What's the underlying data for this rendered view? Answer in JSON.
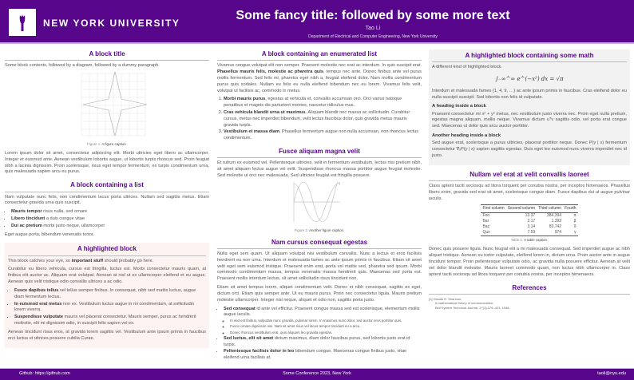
{
  "header": {
    "logo_text": "NEW YORK UNIVERSITY",
    "title": "Some fancy title: followed by some more text",
    "author": "Tao Li",
    "institution": "Department of Electrical and Computer Engineering, New York University"
  },
  "colors": {
    "brand": "#57068c",
    "highlight": "#fdf3f1",
    "highlight2": "#f2f2f2"
  },
  "col1": {
    "b1": {
      "title": "A block title",
      "intro": "Some block contents, followed by a diagram, followed by a dummy paragraph.",
      "fig_label": "Figure 1.",
      "fig_caption": "A figure caption.",
      "para": "Lorem ipsum dolor sit amet, consectetur adipiscing elit. Morbi ultricies eget libero ac ullamcorper. Integer et euismod ante. Aenean vestibulum lobortis augue, ut lobortis turpis rhoncus sed. Proin feugiat nibh a lacinia dignissim. Proin scelerisque, risus eget tempor fermentum, ex turpis condimentum urna, quis malesuada sapien arcu eu purus."
    },
    "b2": {
      "title": "A block containing a list",
      "intro": "Nam vulputate nunc felis, non condimentum lacus porta ultrices. Nullam sed sagittis metus. Etiam consectetur gravida urna quis suscipit.",
      "items": [
        {
          "b": "Mauris tempor",
          "t": " risus nulla, sed ornare"
        },
        {
          "b": "Libero tincidunt",
          "t": " a duis congue vitae"
        },
        {
          "b": "Dui ac pretium",
          "t": " morbi justo neque, ullamcorper"
        }
      ],
      "outro": "Eget augue porta, bibendum venenatis tortor."
    },
    "b3": {
      "title": "A highlighted block",
      "p1a": "This block catches your eye, so ",
      "p1b": "important stuff",
      "p1c": " should probably go here.",
      "p2": "Curabitur eu libero vehicula, cursus est fringilla, luctus est. Morbi consectetur mauris quam, at finibus elit auctor ac. Aliquam erat volutpat. Aenean at nisl ut ex ullamcorper eleifend et eu augue. Aenean quis velit tristique odio convallis ultrices a ac odio.",
      "items": [
        {
          "b": "Fusce dapibus tellus",
          "t": " vel tellus semper finibus. In consequat, nibh sed mattis luctus, augue diam fermentum lectus."
        },
        {
          "b": "In euismod erat metus",
          "t": " non ex. Vestibulum luctus augue in mi condimentum, at sollicitudin lorem viverra."
        },
        {
          "b": "Suspendisse vulputate",
          "t": " mauris vel placerat consectetur. Mauris semper, purus ac hendrerit molestie, elit mi dignissim odio, in suscipit felis sapien vel ex."
        }
      ],
      "p3": "Aenean tincidunt risus eros, at gravida lorem sagittis vel. Vestibulum ante ipsum primis in faucibus orci luctus et ultrices posuere cubilia Curae."
    }
  },
  "col2": {
    "b1": {
      "title": "A block containing an enumerated list",
      "p1a": "Vivamus congue volutpat elit non semper. Praesent molestie nec erat ac interdum. In quis suscipit erat. ",
      "p1b": "Phasellus mauris felis, molestie ac pharetra quis",
      "p1c": ", tempus nec ante. Donec finibus ante vel purus mollis fermentum. Sed felis mi, pharetra eget nibh a, feugiat eleifend dolor. Nam mollis condimentum purus quis sodales. Nullam eu felis eu nulla eleifend bibendum nec eu lorem. Vivamus felis velit, volutpat ut facilisis ac, commodo in metus.",
      "items": [
        {
          "b": "Morbi mauris purus",
          "t": ", egestas at vehicula et, convallis accumsan orci. Orci varius natoque penatibus et magnis dis parturient montes, nascetur ridiculus mus."
        },
        {
          "b": "Cras vehicula blandit urna ut maximus",
          "t": ". Aliquam blandit nec massa ac sollicitudin. Curabitur cursus, metus nec imperdiet bibendum, velit lectus faucibus dolor, quis gravida metus mauris gravida turpis."
        },
        {
          "b": "Vestibulum et massa diam",
          "t": ". Phasellus fermentum augue non nulla accumsan, non rhoncus lectus condimentum."
        }
      ]
    },
    "b2": {
      "title": "Fusce aliquam magna velit",
      "p": "Et rutrum ex euismod vel. Pellentesque ultricies, velit in fermentum vestibulum, lectus nisi pretium nibh, sit amet aliquam lectus augue vel velit. Suspendisse rhoncus massa porttitor augue feugiat molestie. Sed molestie ut orci nec malesuada. Sed ultricies feugiat est fringilla posuere.",
      "fig_label": "Figure 2.",
      "fig_caption": "Another figure caption."
    },
    "b3": {
      "title": "Nam cursus consequat egestas",
      "p1": "Nulla eget sem quam. Ut aliquam volutpat nisi vestibulum convallis. Nunc a lectus et eros facilisis hendrerit eu non urna. Interdum et malesuada fames ac ante ipsum primis in faucibus. Etiam sit amet velit eget sem euismod tristique. Praesent enim erat, porta vel mattis sed, pharetra sed ipsum. Morbi commodo condimentum massa, tempus venenatis massa hendrerit quis. Maecenas sed porta est. Praesent mollis interdum lectus, sit amet sollicitudin risus tincidunt non.",
      "p2": "Etiam sit amet tempus lorem, aliquet condimentum velit. Donec et nibh consequat, sagittis ex eget, dictum orci. Etiam quis semper ante. Ut eu mauris purus. Proin nec consectetur ligula. Mauris pretium molestie ullamcorper. Integer nisi neque, aliquet et odio non, sagittis porta justo.",
      "items": [
        {
          "b": "Sed consequat",
          "t": " id ante vel efficitur. Praesent congue massa sed est scelerisque, elementum mollis augue iaculis.",
          "sub": [
            "In sed est finibus, vulputate nunc gravida, pulvinar lorem. In maximus nunc dolor, sed auctor eros porttitor quis.",
            "Fusce ornare dignissim nisi. Nam sit amet risus vel lacus tempor tincidunt eu a arcu.",
            "Donec rhoncus vestibulum erat, quis aliquam leo gravida egestas."
          ]
        },
        {
          "b": "Sed luctus, elit sit amet",
          "t": " dictum maximus, diam dolor faucibus purus, sed lobortis justo erat id turpis."
        },
        {
          "b": "Pellentesque facilisis dolor in leo",
          "t": " bibendum congue. Maecenas congue finibus justo, vitae eleifend urna facilisis at."
        }
      ]
    }
  },
  "col3": {
    "b1": {
      "title": "A highlighted block containing some math",
      "intro": "A different kind of highlighted block.",
      "equation": "∫₋∞^∞ e^(−x²) dx = √π",
      "p1": "Interdum et malesuada fames {1, 4, 9, …} ac ante ipsum primis in faucibus. Cras eleifend dolor eu nulla suscipit suscipit. Sed lobortis non felis id vulputate.",
      "h1": "A heading inside a block",
      "p2": "Praesent consectetur mi x² + y² metus, nec vestibulum justo viverra nec. Proin eget nulla pretium, egestas magna aliquam, mollis neque. Vivamus dictum uᵀv sagittis odio, vel porta erat congue sed. Maecenas ut dolor quis arcu auctor porttitor.",
      "h2": "Another heading inside a block",
      "p3": "Sed augue erat, scelerisque a purus ultricies, placerat porttitor neque. Donec P(y | x) fermentum consectetur ∇ₓP(y | x) sapien sagittis egestas. Duis eget leo euismod nunc viverra imperdiet nec id justo."
    },
    "b2": {
      "title": "Nullam vel erat at velit convallis laoreet",
      "p1": "Class aptent taciti sociosqu ad litora torquent per conubia nostra, per inceptos himenaeos. Phasellus libero enim, gravida sed erat sit amet, scelerisque congue diam. Fusce dapibus dui ut augue pulvinar iaculis.",
      "table": {
        "headers": [
          "First column",
          "Second column",
          "Third column",
          "Fourth"
        ],
        "rows": [
          [
            "Foo",
            "13.37",
            "384,394",
            "α"
          ],
          [
            "Bar",
            "2.17",
            "1,392",
            "β"
          ],
          [
            "Baz",
            "3.14",
            "83,742",
            "δ"
          ],
          [
            "Qux",
            "7.59",
            "974",
            "γ"
          ]
        ]
      },
      "tab_label": "Table 1.",
      "tab_caption": "A table caption.",
      "p2": "Donec quis posuere ligula. Nunc feugiat elit a mi malesuada consequat. Sed imperdiet augue ac nibh aliquet tristique. Aenean eu tortor vulputate, eleifend lorem in, dictum urna. Proin auctor ante in augue tincidunt tempor. Proin pellentesque vulputate odio, ac gravida nulla posuere efficitur. Aenean at velit vel dolor blandit molestie. Mauris laoreet commodo quam, non luctus nibh ullamcorper in. Class aptent taciti sociosqu ad litora torquent per conubia nostra, per inceptos himenaeos."
    },
    "refs": {
      "title": "References",
      "num": "[1]",
      "author": "Claude E. Shannon.",
      "work": "A mathematical theory of communication.",
      "journal": "Bell System Technical Journal, 27(3):379–423, 1948."
    }
  },
  "footer": {
    "left": "Github: https://github.com",
    "center": "Some Conference 2023, New York",
    "right": "taoli@nyu.edu"
  }
}
